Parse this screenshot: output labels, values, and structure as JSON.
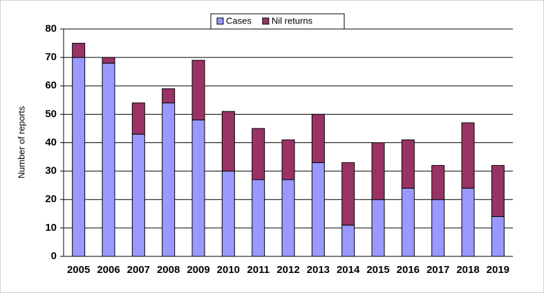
{
  "chart_data": {
    "type": "bar",
    "stacked": true,
    "y_label": "Number of reports",
    "categories": [
      "2005",
      "2006",
      "2007",
      "2008",
      "2009",
      "2010",
      "2011",
      "2012",
      "2013",
      "2014",
      "2015",
      "2016",
      "2017",
      "2018",
      "2019"
    ],
    "series": [
      {
        "name": "Cases",
        "color": "#9999ff",
        "values": [
          70,
          68,
          43,
          54,
          48,
          30,
          27,
          27,
          33,
          11,
          20,
          24,
          20,
          24,
          14
        ]
      },
      {
        "name": "Nil returns",
        "color": "#993366",
        "values": [
          5,
          2,
          11,
          5,
          21,
          21,
          18,
          14,
          17,
          22,
          20,
          17,
          12,
          23,
          18
        ]
      }
    ],
    "ylim": [
      0,
      80
    ],
    "yticks": [
      0,
      10,
      20,
      30,
      40,
      50,
      60,
      70,
      80
    ],
    "grid": true,
    "legend": "top"
  }
}
